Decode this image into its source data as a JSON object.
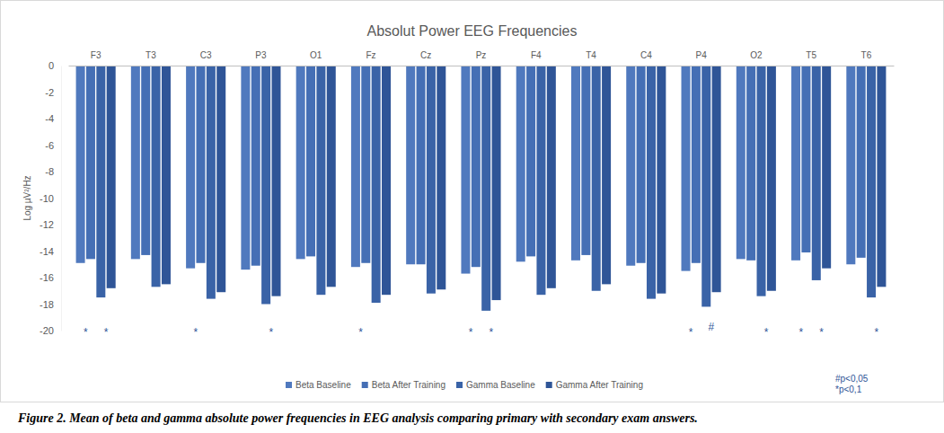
{
  "chart_data": {
    "type": "bar",
    "title": "Absolut Power EEG Frequencies",
    "y_label": "Log µV²/Hz",
    "categories": [
      "F3",
      "T3",
      "C3",
      "P3",
      "O1",
      "Fz",
      "Cz",
      "Pz",
      "F4",
      "T4",
      "C4",
      "P4",
      "O2",
      "T5",
      "T6"
    ],
    "series": [
      {
        "name": "Beta Baseline",
        "color": "#5079be",
        "values": [
          -14.9,
          -14.6,
          -15.3,
          -15.4,
          -14.6,
          -15.2,
          -15.0,
          -15.7,
          -14.8,
          -14.7,
          -15.1,
          -15.5,
          -14.6,
          -14.7,
          -15.0
        ]
      },
      {
        "name": "Beta After Training",
        "color": "#456fb5",
        "values": [
          -14.6,
          -14.3,
          -14.9,
          -15.1,
          -14.4,
          -14.9,
          -15.0,
          -15.2,
          -14.4,
          -14.3,
          -14.9,
          -14.9,
          -14.7,
          -14.1,
          -14.5
        ]
      },
      {
        "name": "Gamma Baseline",
        "color": "#3a63a7",
        "values": [
          -17.5,
          -16.7,
          -17.6,
          -18.0,
          -17.3,
          -17.9,
          -17.2,
          -18.5,
          -17.3,
          -17.0,
          -17.6,
          -18.2,
          -17.4,
          -16.2,
          -17.5
        ]
      },
      {
        "name": "Gamma After Training",
        "color": "#2f5597",
        "values": [
          -16.8,
          -16.5,
          -17.1,
          -17.4,
          -16.7,
          -17.3,
          -16.9,
          -17.7,
          -16.8,
          -16.5,
          -17.2,
          -17.1,
          -17.0,
          -15.3,
          -16.7
        ]
      }
    ],
    "ylim": [
      -20,
      0
    ],
    "yticks": [
      0,
      -2,
      -4,
      -6,
      -8,
      -10,
      -12,
      -14,
      -16,
      -18,
      -20
    ],
    "grid": false,
    "legend": "bottom",
    "annotations": [
      {
        "text": "*",
        "category": "F3",
        "series": [
          "Beta Baseline",
          "Beta After Training"
        ]
      },
      {
        "text": "*",
        "category": "F3",
        "series": [
          "Gamma Baseline",
          "Gamma After Training"
        ]
      },
      {
        "text": "*",
        "category": "C3",
        "series": [
          "Beta Baseline",
          "Beta After Training"
        ]
      },
      {
        "text": "*",
        "category": "P3",
        "series": [
          "Gamma Baseline",
          "Gamma After Training"
        ]
      },
      {
        "text": "*",
        "category": "Fz",
        "series": [
          "Beta Baseline",
          "Beta After Training"
        ]
      },
      {
        "text": "*",
        "category": "Pz",
        "series": [
          "Beta Baseline",
          "Beta After Training"
        ]
      },
      {
        "text": "*",
        "category": "Pz",
        "series": [
          "Gamma Baseline",
          "Gamma After Training"
        ]
      },
      {
        "text": "*",
        "category": "P4",
        "series": [
          "Beta Baseline",
          "Beta After Training"
        ]
      },
      {
        "text": "#",
        "category": "P4",
        "series": [
          "Gamma Baseline",
          "Gamma After Training"
        ]
      },
      {
        "text": "*",
        "category": "O2",
        "series": [
          "Gamma Baseline",
          "Gamma After Training"
        ]
      },
      {
        "text": "*",
        "category": "T5",
        "series": [
          "Beta Baseline",
          "Beta After Training"
        ]
      },
      {
        "text": "*",
        "category": "T5",
        "series": [
          "Gamma Baseline",
          "Gamma After Training"
        ]
      },
      {
        "text": "*",
        "category": "T6",
        "series": [
          "Gamma Baseline",
          "Gamma After Training"
        ]
      }
    ],
    "notes": [
      "#p<0,05",
      "*p<0,1"
    ],
    "caption": "Figure 2. Mean of beta and gamma absolute power frequencies in EEG analysis comparing primary with secondary exam answers."
  }
}
